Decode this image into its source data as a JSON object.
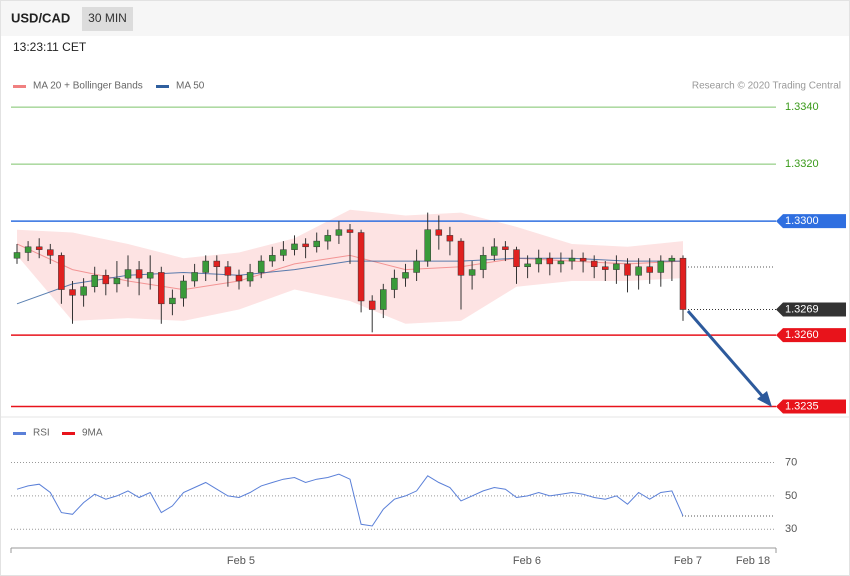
{
  "chart_data": {
    "type": "candlestick",
    "title": "USD/CAD",
    "timeframe": "30 MIN",
    "time": "13:23:11 CET",
    "credit": "Research © 2020 Trading Central",
    "ylim": [
      1.3232,
      1.3346
    ],
    "candles": {
      "up_color": "#3a9a3a",
      "down_color": "#e0201f",
      "open": [
        1.3287,
        1.3289,
        1.3291,
        1.329,
        1.3288,
        1.3276,
        1.3274,
        1.3277,
        1.3281,
        1.3278,
        1.328,
        1.3283,
        1.328,
        1.3282,
        1.3271,
        1.3273,
        1.3279,
        1.3282,
        1.3286,
        1.3284,
        1.3281,
        1.3279,
        1.3282,
        1.3286,
        1.3288,
        1.329,
        1.3292,
        1.3291,
        1.3293,
        1.3295,
        1.3297,
        1.3296,
        1.3272,
        1.3269,
        1.3276,
        1.328,
        1.3282,
        1.3286,
        1.3297,
        1.3295,
        1.3293,
        1.3281,
        1.3283,
        1.3288,
        1.3291,
        1.329,
        1.3284,
        1.3285,
        1.3287,
        1.3285,
        1.3286,
        1.3287,
        1.3286,
        1.3284,
        1.3283,
        1.3285,
        1.3281,
        1.3284,
        1.3282,
        1.3286,
        1.3287
      ],
      "high": [
        1.3292,
        1.3293,
        1.3294,
        1.3292,
        1.3289,
        1.3279,
        1.328,
        1.3284,
        1.3283,
        1.3286,
        1.3288,
        1.3286,
        1.3288,
        1.3284,
        1.3276,
        1.3281,
        1.3285,
        1.3288,
        1.3288,
        1.3286,
        1.3283,
        1.3285,
        1.3288,
        1.3291,
        1.3293,
        1.3295,
        1.3294,
        1.3296,
        1.3297,
        1.33,
        1.3299,
        1.3297,
        1.3274,
        1.3278,
        1.3283,
        1.3285,
        1.329,
        1.3303,
        1.3302,
        1.3298,
        1.3294,
        1.3286,
        1.3291,
        1.3294,
        1.3293,
        1.3291,
        1.3288,
        1.329,
        1.3289,
        1.3289,
        1.329,
        1.3289,
        1.3288,
        1.3286,
        1.3288,
        1.3287,
        1.3287,
        1.3287,
        1.3288,
        1.3288,
        1.3288
      ],
      "low": [
        1.3285,
        1.3286,
        1.3287,
        1.3285,
        1.3271,
        1.3264,
        1.327,
        1.3275,
        1.3274,
        1.3275,
        1.3277,
        1.3274,
        1.3276,
        1.3264,
        1.3267,
        1.327,
        1.3277,
        1.3279,
        1.3279,
        1.3277,
        1.3276,
        1.3277,
        1.328,
        1.3284,
        1.3286,
        1.3288,
        1.3287,
        1.3289,
        1.329,
        1.3292,
        1.3285,
        1.3268,
        1.3261,
        1.3266,
        1.3273,
        1.3277,
        1.3279,
        1.3284,
        1.329,
        1.3288,
        1.3269,
        1.3276,
        1.328,
        1.3286,
        1.3286,
        1.3278,
        1.328,
        1.3282,
        1.3281,
        1.3282,
        1.3283,
        1.3282,
        1.328,
        1.3279,
        1.3278,
        1.3275,
        1.3276,
        1.3278,
        1.3277,
        1.3279,
        1.3265
      ],
      "close": [
        1.3289,
        1.3291,
        1.329,
        1.3288,
        1.3276,
        1.3274,
        1.3277,
        1.3281,
        1.3278,
        1.328,
        1.3283,
        1.328,
        1.3282,
        1.3271,
        1.3273,
        1.3279,
        1.3282,
        1.3286,
        1.3284,
        1.3281,
        1.3279,
        1.3282,
        1.3286,
        1.3288,
        1.329,
        1.3292,
        1.3291,
        1.3293,
        1.3295,
        1.3297,
        1.3296,
        1.3272,
        1.3269,
        1.3276,
        1.328,
        1.3282,
        1.3286,
        1.3297,
        1.3295,
        1.3293,
        1.3281,
        1.3283,
        1.3288,
        1.3291,
        1.329,
        1.3284,
        1.3285,
        1.3287,
        1.3285,
        1.3286,
        1.3287,
        1.3286,
        1.3284,
        1.3283,
        1.3285,
        1.3281,
        1.3284,
        1.3282,
        1.3286,
        1.3287,
        1.3269
      ]
    },
    "series": [
      {
        "name": "MA 20 + Bollinger Bands",
        "color": "#f08080",
        "band_color": "#fde3e3",
        "x": [
          0,
          5,
          10,
          15,
          20,
          25,
          30,
          35,
          40,
          45,
          50,
          55,
          60
        ],
        "values": [
          1.3292,
          1.3283,
          1.3279,
          1.3276,
          1.3279,
          1.3285,
          1.3288,
          1.3283,
          1.3284,
          1.3287,
          1.3286,
          1.3285,
          1.3286
        ],
        "upper": [
          1.3297,
          1.3296,
          1.3292,
          1.3287,
          1.3289,
          1.3294,
          1.3304,
          1.3302,
          1.3303,
          1.3298,
          1.3292,
          1.3291,
          1.3293
        ],
        "lower": [
          1.3288,
          1.3265,
          1.3266,
          1.3265,
          1.3269,
          1.3276,
          1.3272,
          1.3264,
          1.3265,
          1.3277,
          1.3279,
          1.3279,
          1.328
        ]
      },
      {
        "name": "MA 50",
        "color": "#2f5f9e",
        "x": [
          0,
          5,
          10,
          15,
          20,
          25,
          30,
          35,
          40,
          45,
          50,
          55,
          60
        ],
        "values": [
          1.3271,
          1.3278,
          1.3281,
          1.3282,
          1.3281,
          1.3283,
          1.3286,
          1.3286,
          1.3286,
          1.3287,
          1.3287,
          1.3286,
          1.3286
        ]
      }
    ],
    "levels": [
      {
        "value": 1.334,
        "label": "1.3340",
        "color": "#7dc36b",
        "text_color": "#3a9a1a",
        "boxed": false,
        "dashed": false
      },
      {
        "value": 1.332,
        "label": "1.3320",
        "color": "#7dc36b",
        "text_color": "#3a9a1a",
        "boxed": false,
        "dashed": false
      },
      {
        "value": 1.33,
        "label": "1.3300",
        "color": "#2f6fe0",
        "text_color": "#ffffff",
        "boxed": true,
        "dashed": false
      },
      {
        "value": 1.3269,
        "label": "1.3269",
        "color": "#333333",
        "text_color": "#ffffff",
        "boxed": true,
        "dashed": true
      },
      {
        "value": 1.326,
        "label": "1.3260",
        "color": "#e8131b",
        "text_color": "#ffffff",
        "boxed": true,
        "dashed": false
      },
      {
        "value": 1.3235,
        "label": "1.3235",
        "color": "#e8131b",
        "text_color": "#ffffff",
        "boxed": true,
        "dashed": false
      }
    ],
    "rsi": {
      "legend": [
        {
          "name": "RSI",
          "color": "#5b80d8"
        },
        {
          "name": "9MA",
          "color": "#e8131b"
        }
      ],
      "ylim": [
        20,
        80
      ],
      "yticks": [
        70,
        50,
        30
      ],
      "values": [
        54,
        56,
        57,
        52,
        40,
        39,
        46,
        51,
        48,
        50,
        53,
        49,
        52,
        40,
        44,
        52,
        55,
        58,
        54,
        50,
        49,
        52,
        56,
        58,
        60,
        61,
        58,
        60,
        61,
        63,
        60,
        33,
        32,
        42,
        48,
        50,
        53,
        62,
        58,
        55,
        47,
        50,
        53,
        55,
        54,
        49,
        50,
        52,
        50,
        51,
        52,
        51,
        49,
        48,
        50,
        45,
        52,
        48,
        52,
        53,
        38
      ]
    },
    "x_labels": [
      "Feb 5",
      "Feb 6",
      "Feb 7",
      "Feb 18"
    ]
  }
}
